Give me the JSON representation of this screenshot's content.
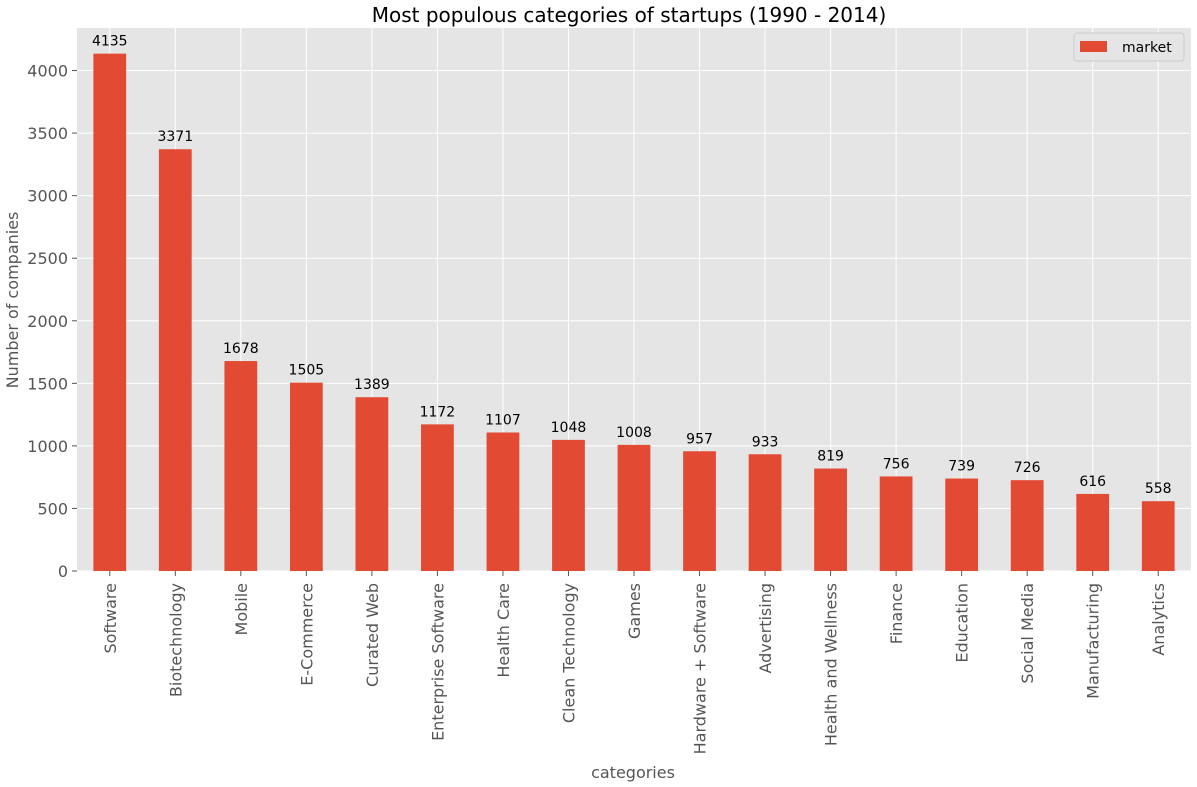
{
  "chart_data": {
    "type": "bar",
    "title": "Most populous categories of startups (1990 - 2014)",
    "xlabel": "categories",
    "ylabel": "Number of companies",
    "categories": [
      "Software",
      "Biotechnology",
      "Mobile",
      "E-Commerce",
      "Curated Web",
      "Enterprise Software",
      "Health Care",
      "Clean Technology",
      "Games",
      "Hardware + Software",
      "Advertising",
      "Health and Wellness",
      "Finance",
      "Education",
      "Social Media",
      "Manufacturing",
      "Analytics"
    ],
    "series": [
      {
        "name": "market",
        "values": [
          4135,
          3371,
          1678,
          1505,
          1389,
          1172,
          1107,
          1048,
          1008,
          957,
          933,
          819,
          756,
          739,
          726,
          616,
          558
        ],
        "color": "#e24a33"
      }
    ],
    "data_labels": [
      "4135",
      "3371",
      "1678",
      "1505",
      "1389",
      "1172",
      "1107",
      "1048",
      "1008",
      "957",
      "933",
      "819",
      "756",
      "739",
      "726",
      "616",
      "558"
    ],
    "yticks": [
      0,
      500,
      1000,
      1500,
      2000,
      2500,
      3000,
      3500,
      4000
    ],
    "ylim": [
      0,
      4340
    ],
    "grid": true,
    "legend_position": "top-right",
    "colors": {
      "plot_background": "#e5e5e5",
      "grid": "#ffffff",
      "bar": "#e24a33"
    }
  }
}
